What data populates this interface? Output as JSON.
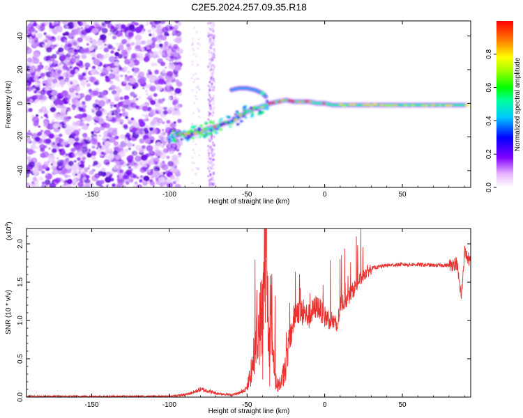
{
  "title": "C2E5.2024.257.09.35.R18",
  "colors": {
    "snr_line": "#e8312f",
    "axis": "#000000",
    "spectrogram_background": "#ffffff"
  },
  "chart_data": [
    {
      "type": "heatmap",
      "name": "spectrogram",
      "xlabel": "Height of straight line (km)",
      "ylabel": "Frequency (Hz)",
      "xlim": [
        -192,
        94
      ],
      "ylim": [
        -50,
        49
      ],
      "xticks": [
        -150,
        -100,
        -50,
        0,
        50
      ],
      "yticks": [
        -40,
        -20,
        0,
        20,
        40
      ],
      "colorscale": "rainbow (white → violet → blue → cyan → green → yellow → orange → red)",
      "noise_region_x": [
        -192,
        -93
      ],
      "track": [
        {
          "x": -95,
          "y": -19
        },
        {
          "x": -90,
          "y": -18
        },
        {
          "x": -85,
          "y": -18
        },
        {
          "x": -80,
          "y": -17
        },
        {
          "x": -75,
          "y": -15
        },
        {
          "x": -70,
          "y": -14
        },
        {
          "x": -65,
          "y": -12
        },
        {
          "x": -60,
          "y": -11
        },
        {
          "x": -55,
          "y": -8
        },
        {
          "x": -50,
          "y": -5
        },
        {
          "x": -45,
          "y": -3
        },
        {
          "x": -40,
          "y": -2
        },
        {
          "x": -35,
          "y": 0
        },
        {
          "x": -30,
          "y": 1
        },
        {
          "x": -25,
          "y": 2
        },
        {
          "x": -20,
          "y": 1
        },
        {
          "x": -15,
          "y": 1
        },
        {
          "x": -10,
          "y": 1
        },
        {
          "x": -5,
          "y": 0
        },
        {
          "x": 0,
          "y": 0
        },
        {
          "x": 5,
          "y": -1
        },
        {
          "x": 10,
          "y": -1
        },
        {
          "x": 20,
          "y": -1
        },
        {
          "x": 30,
          "y": -1
        },
        {
          "x": 40,
          "y": -1
        },
        {
          "x": 50,
          "y": -1
        },
        {
          "x": 60,
          "y": -1
        },
        {
          "x": 70,
          "y": -1
        },
        {
          "x": 80,
          "y": -1
        },
        {
          "x": 90,
          "y": -1
        }
      ],
      "upper_branch": [
        {
          "x": -60,
          "y": 8
        },
        {
          "x": -55,
          "y": 9
        },
        {
          "x": -50,
          "y": 9
        },
        {
          "x": -45,
          "y": 8
        },
        {
          "x": -40,
          "y": 6
        },
        {
          "x": -38,
          "y": 4
        }
      ],
      "colorbar": {
        "label": "Normalized spectral amplitude",
        "range": [
          0.0,
          1.0
        ],
        "ticks": [
          "0.0",
          "0.2",
          "0.4",
          "0.6",
          "0.8"
        ]
      }
    },
    {
      "type": "line",
      "name": "snr",
      "xlabel": "Height of straight line (km)",
      "ylabel": "SNR (10 * v/v)",
      "y_multiplier": "(x10",
      "y_multiplier_exp": "4",
      "y_multiplier_close": ")",
      "xlim": [
        -192,
        94
      ],
      "ylim": [
        0.0,
        2.2
      ],
      "xticks": [
        -150,
        -100,
        -50,
        0,
        50
      ],
      "yticks": [
        "0.0",
        "0.5",
        "1.0",
        "1.5",
        "2.0"
      ],
      "series": [
        {
          "values_x": [
            -192,
            -170,
            -150,
            -130,
            -110,
            -100,
            -95,
            -90,
            -85,
            -80,
            -75,
            -70,
            -65,
            -60,
            -55,
            -50,
            -47,
            -45,
            -42,
            -40,
            -39,
            -38,
            -37,
            -36,
            -35,
            -34,
            -33,
            -32,
            -30,
            -28,
            -25,
            -23,
            -20,
            -18,
            -15,
            -10,
            -5,
            0,
            5,
            8,
            10,
            15,
            20,
            25,
            30,
            40,
            50,
            60,
            70,
            80,
            85,
            88,
            90,
            94
          ],
          "values_y": [
            0.01,
            0.01,
            0.01,
            0.01,
            0.01,
            0.01,
            0.02,
            0.03,
            0.06,
            0.1,
            0.08,
            0.05,
            0.04,
            0.03,
            0.05,
            0.12,
            0.35,
            0.6,
            0.9,
            1.2,
            1.6,
            2.2,
            1.4,
            0.7,
            1.1,
            0.4,
            0.6,
            0.2,
            0.15,
            0.2,
            0.4,
            0.7,
            1.0,
            1.15,
            1.1,
            1.05,
            1.2,
            1.05,
            1.0,
            0.9,
            1.2,
            1.3,
            1.45,
            1.6,
            1.68,
            1.72,
            1.73,
            1.73,
            1.72,
            1.72,
            1.75,
            1.3,
            1.9,
            1.75
          ]
        }
      ]
    }
  ]
}
